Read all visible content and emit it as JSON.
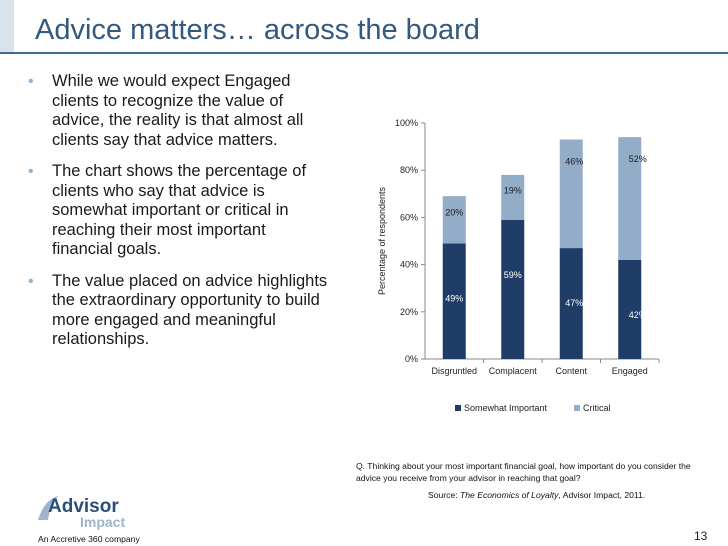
{
  "slide": {
    "title": "Advice matters… across the board",
    "bullets": [
      "While we would expect Engaged clients to recognize the value of advice, the reality is that almost all clients say that advice matters.",
      "The chart shows the percentage of clients who say that advice is somewhat important or critical in reaching their most important financial goals.",
      "The value placed on advice highlights the extraordinary opportunity to build more engaged and meaningful relationships."
    ],
    "question": "Q. Thinking about your most important financial goal, how important do you consider the advice you receive from your advisor in reaching that goal?",
    "source_label": "Source: ",
    "source_title": "The Economics of Loyalty",
    "source_rest": ", Advisor Impact, 2011.",
    "logo_text_top": "Advisor",
    "logo_text_bottom": "Impact",
    "company": "An Accretive 360 company",
    "page_number": "13"
  },
  "colors": {
    "title": "#34597c",
    "somewhat_important": "#1f3d66",
    "critical": "#93acc8",
    "bullet": "#8fb3d4"
  },
  "chart_data": {
    "type": "bar",
    "stacked": true,
    "categories": [
      "Disgruntled",
      "Complacent",
      "Content",
      "Engaged"
    ],
    "series": [
      {
        "name": "Somewhat Important",
        "values": [
          49,
          59,
          47,
          42
        ],
        "labels": [
          "49%",
          "59%",
          "47%",
          "42%"
        ]
      },
      {
        "name": "Critical",
        "values": [
          20,
          19,
          46,
          52
        ],
        "labels": [
          "20%",
          "19%",
          "46%",
          "52%"
        ]
      }
    ],
    "ylabel": "Percentage of respondents",
    "ylim": [
      0,
      100
    ],
    "yticks": [
      "0%",
      "20%",
      "40%",
      "60%",
      "80%",
      "100%"
    ],
    "grid": false,
    "legend": "bottom"
  }
}
